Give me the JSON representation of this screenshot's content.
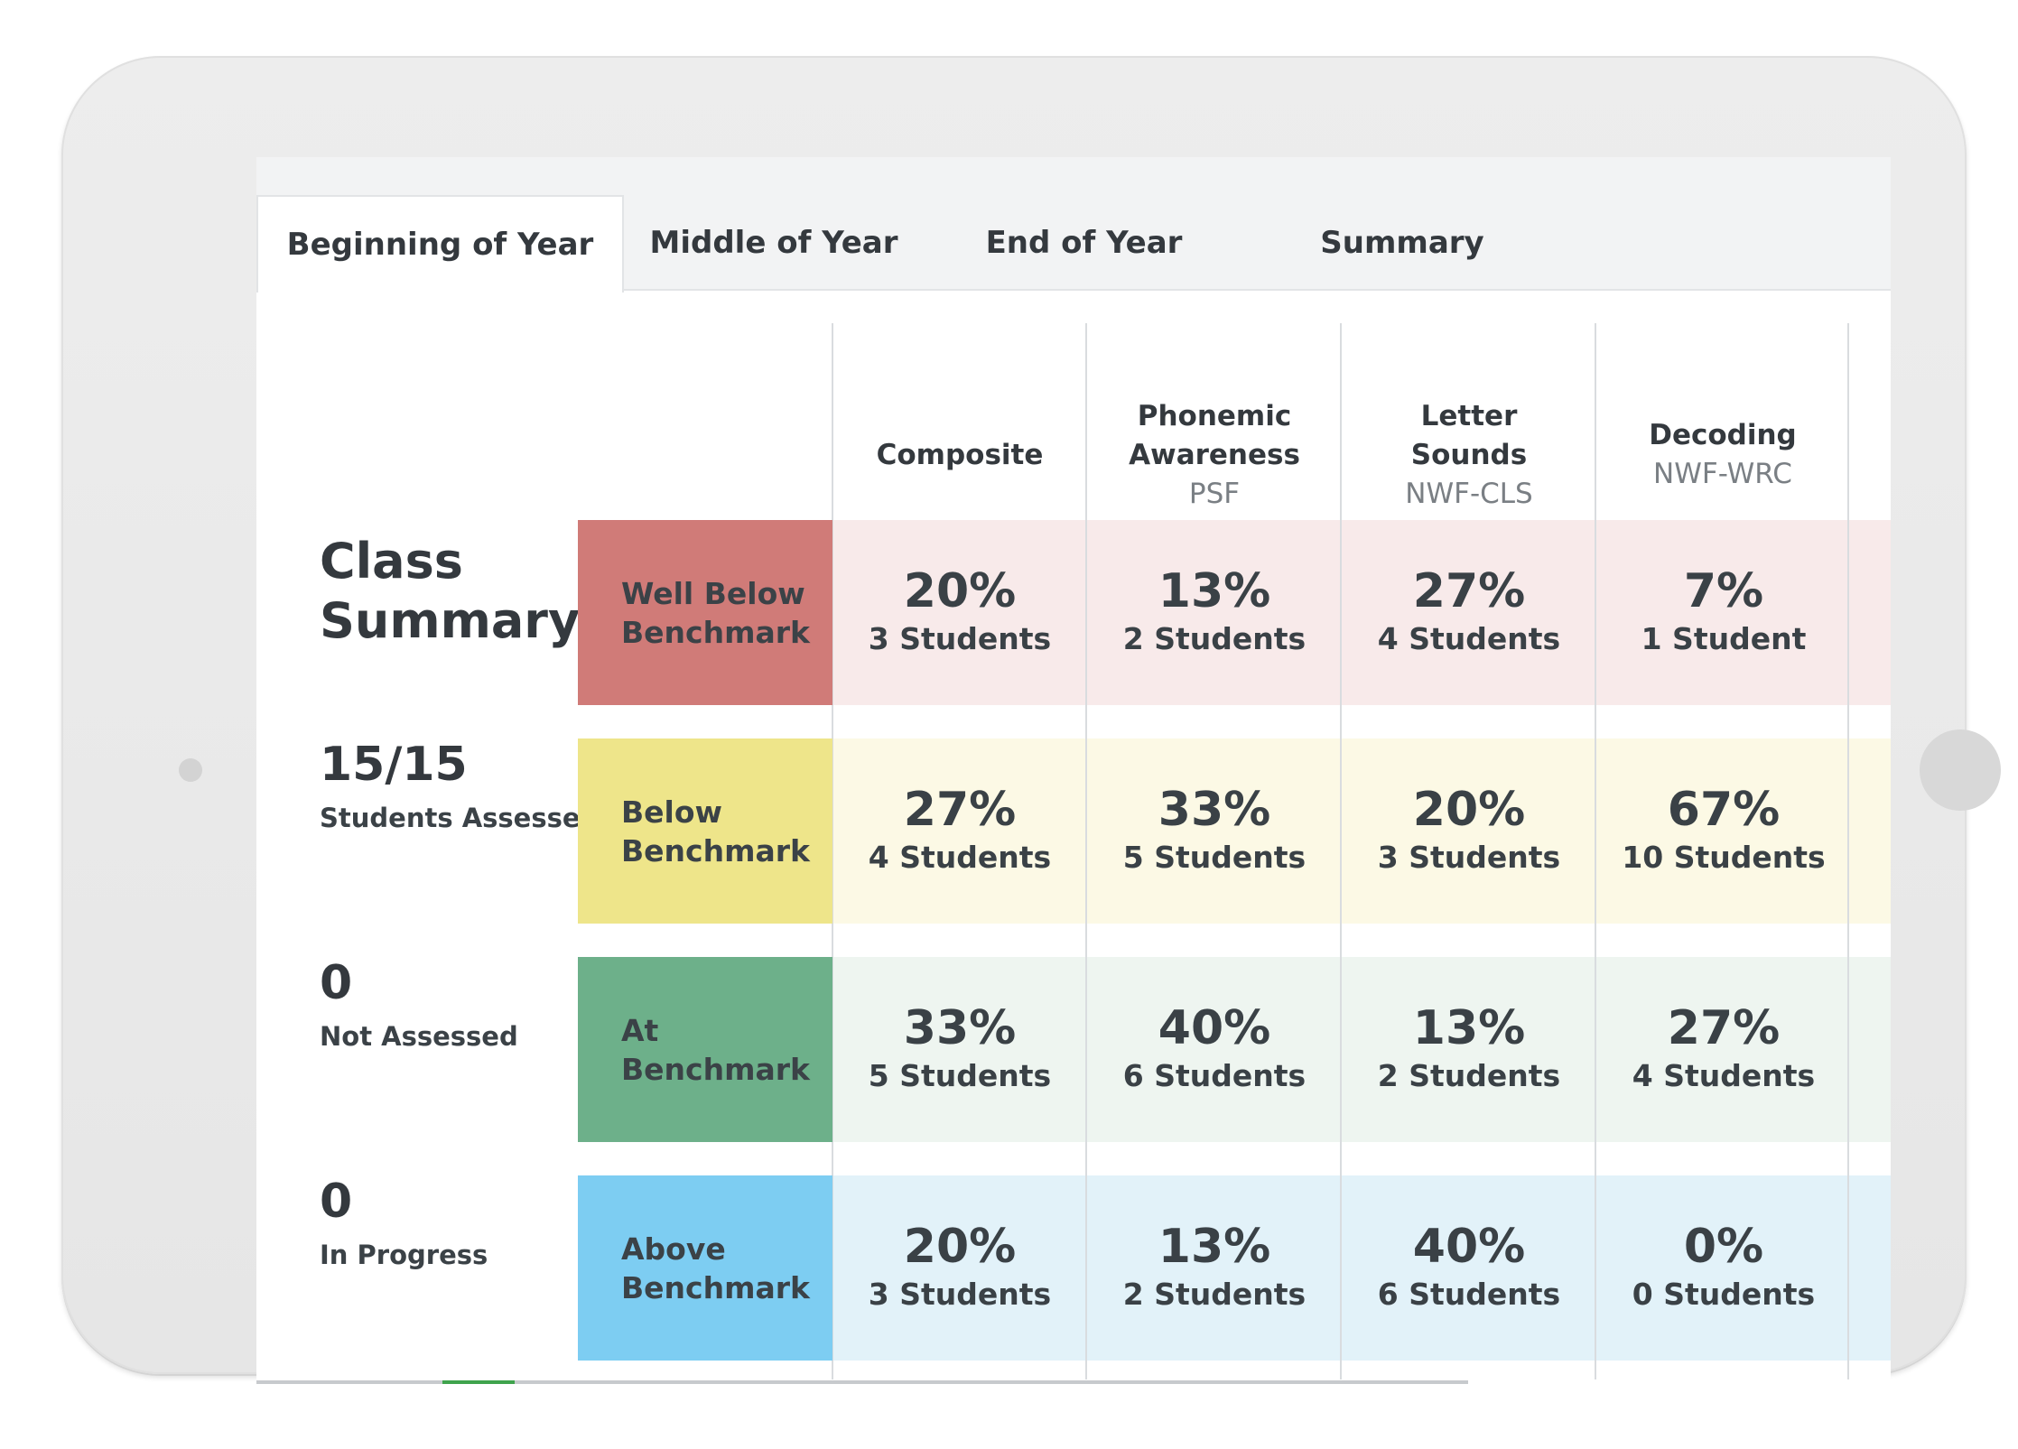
{
  "tabs": [
    {
      "label": "Beginning of Year",
      "active": true
    },
    {
      "label": "Middle of Year",
      "active": false
    },
    {
      "label": "End of Year",
      "active": false
    },
    {
      "label": "Summary",
      "active": false
    }
  ],
  "columns": [
    {
      "title_lines": [
        "Composite"
      ],
      "sub": ""
    },
    {
      "title_lines": [
        "Phonemic",
        "Awareness"
      ],
      "sub": "PSF"
    },
    {
      "title_lines": [
        "Letter",
        "Sounds"
      ],
      "sub": "NWF-CLS"
    },
    {
      "title_lines": [
        "Decoding"
      ],
      "sub": "NWF-WRC"
    }
  ],
  "summary": {
    "title_lines": [
      "Class",
      "Summary"
    ],
    "stats": [
      {
        "value": "15/15",
        "label": "Students Assessed"
      },
      {
        "value": "0",
        "label": "Not Assessed"
      },
      {
        "value": "0",
        "label": "In Progress"
      }
    ]
  },
  "rows": [
    {
      "label_lines": [
        "Well Below",
        "Benchmark"
      ],
      "label_color": "#d07b78",
      "band_color": "#f8eaea",
      "cells": [
        {
          "pct": "20%",
          "count": "3 Students"
        },
        {
          "pct": "13%",
          "count": "2 Students"
        },
        {
          "pct": "27%",
          "count": "4 Students"
        },
        {
          "pct": "7%",
          "count": "1 Student"
        }
      ]
    },
    {
      "label_lines": [
        "Below",
        "Benchmark"
      ],
      "label_color": "#eee58a",
      "band_color": "#fcf9e5",
      "cells": [
        {
          "pct": "27%",
          "count": "4 Students"
        },
        {
          "pct": "33%",
          "count": "5 Students"
        },
        {
          "pct": "20%",
          "count": "3 Students"
        },
        {
          "pct": "67%",
          "count": "10 Students"
        }
      ]
    },
    {
      "label_lines": [
        "At",
        "Benchmark"
      ],
      "label_color": "#6db08a",
      "band_color": "#eef5f0",
      "cells": [
        {
          "pct": "33%",
          "count": "5 Students"
        },
        {
          "pct": "40%",
          "count": "6 Students"
        },
        {
          "pct": "13%",
          "count": "2 Students"
        },
        {
          "pct": "27%",
          "count": "4 Students"
        }
      ]
    },
    {
      "label_lines": [
        "Above",
        "Benchmark"
      ],
      "label_color": "#7dcdf2",
      "band_color": "#e2f2f9",
      "cells": [
        {
          "pct": "20%",
          "count": "3 Students"
        },
        {
          "pct": "13%",
          "count": "2 Students"
        },
        {
          "pct": "40%",
          "count": "6 Students"
        },
        {
          "pct": "0%",
          "count": "0 Students"
        }
      ]
    }
  ]
}
